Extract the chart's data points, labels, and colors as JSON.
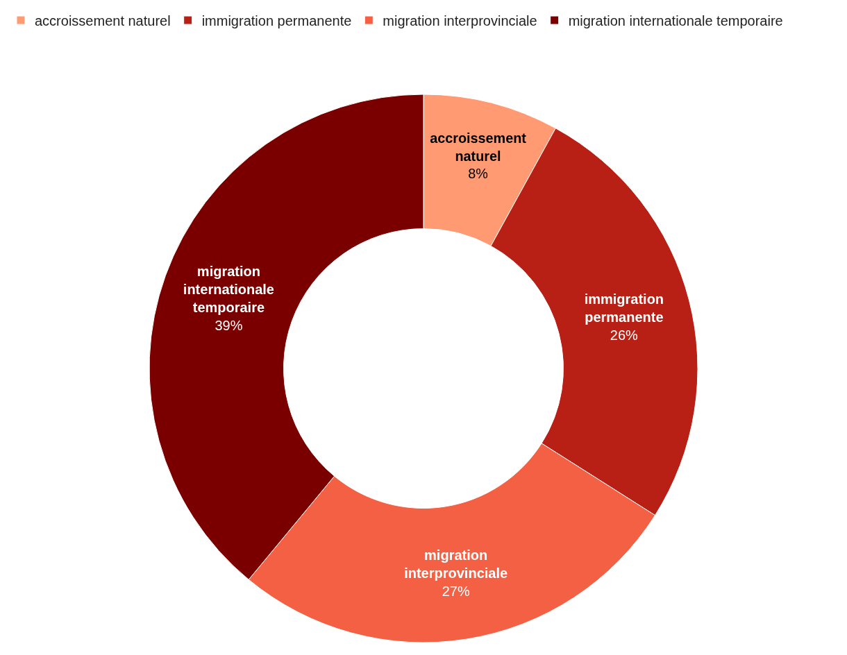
{
  "chart_data": {
    "type": "donut",
    "categories": [
      "accroissement naturel",
      "immigration permanente",
      "migration interprovinciale",
      "migration internationale temporaire"
    ],
    "values": [
      8,
      26,
      27,
      39
    ],
    "value_labels": [
      "8%",
      "26%",
      "27%",
      "39%"
    ],
    "colors": [
      "#ff9a72",
      "#b82015",
      "#f46043",
      "#7a0000"
    ],
    "legend": "top left"
  }
}
